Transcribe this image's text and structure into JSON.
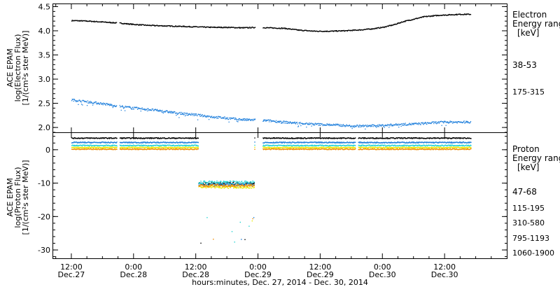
{
  "chart_data": [
    {
      "type": "scatter",
      "panel": "electron",
      "ylabel_lines": [
        "ACE EPAM",
        "log(Electron Flux)",
        "[1/(cm²s ster MeV)]"
      ],
      "ylim": [
        1.9,
        4.55
      ],
      "yticks": [
        "2.0",
        "2.5",
        "3.0",
        "3.5",
        "4.0",
        "4.5"
      ],
      "ytick_values": [
        2.0,
        2.5,
        3.0,
        3.5,
        4.0,
        4.5
      ],
      "legend_title": [
        "Electron",
        "Energy ranges",
        "[keV]"
      ],
      "series": [
        {
          "name": "38-53",
          "color": "#000000",
          "points": [
            [
              0,
              4.22
            ],
            [
              3,
              4.21
            ],
            [
              6,
              4.19
            ],
            [
              9,
              4.17
            ],
            [
              12,
              4.14
            ],
            [
              15,
              4.12
            ],
            [
              18,
              4.11
            ],
            [
              21,
              4.1
            ],
            [
              24,
              4.09
            ],
            [
              27,
              4.08
            ],
            [
              30,
              4.08
            ],
            [
              33,
              4.07
            ],
            [
              36,
              4.08
            ],
            [
              38,
              4.07
            ],
            [
              41,
              4.06
            ],
            [
              44,
              4.02
            ],
            [
              47,
              4.0
            ],
            [
              50,
              4.0
            ],
            [
              53,
              4.01
            ],
            [
              56,
              4.03
            ],
            [
              58,
              4.05
            ],
            [
              60,
              4.08
            ],
            [
              62,
              4.13
            ],
            [
              64,
              4.2
            ],
            [
              66,
              4.25
            ],
            [
              68,
              4.3
            ],
            [
              71,
              4.33
            ],
            [
              75,
              4.35
            ],
            [
              77,
              4.35
            ]
          ],
          "gaps": [
            [
              8.7,
              9.2
            ],
            [
              35.4,
              36.9
            ]
          ]
        },
        {
          "name": "175-315",
          "color": "#1e7fdc",
          "points": [
            [
              0,
              2.58
            ],
            [
              3,
              2.54
            ],
            [
              6,
              2.5
            ],
            [
              9,
              2.45
            ],
            [
              12,
              2.41
            ],
            [
              15,
              2.38
            ],
            [
              18,
              2.34
            ],
            [
              21,
              2.3
            ],
            [
              24,
              2.27
            ],
            [
              27,
              2.23
            ],
            [
              30,
              2.2
            ],
            [
              33,
              2.17
            ],
            [
              36,
              2.16
            ],
            [
              39,
              2.14
            ],
            [
              42,
              2.11
            ],
            [
              45,
              2.09
            ],
            [
              48,
              2.07
            ],
            [
              51,
              2.06
            ],
            [
              54,
              2.04
            ],
            [
              57,
              2.04
            ],
            [
              60,
              2.05
            ],
            [
              63,
              2.07
            ],
            [
              66,
              2.08
            ],
            [
              69,
              2.1
            ],
            [
              72,
              2.12
            ],
            [
              75,
              2.12
            ],
            [
              77,
              2.12
            ]
          ],
          "gaps": [
            [
              8.7,
              9.2
            ],
            [
              35.4,
              36.9
            ]
          ]
        }
      ]
    },
    {
      "type": "scatter",
      "panel": "proton",
      "ylabel_lines": [
        "ACE EPAM",
        "log(Proton Flux)",
        "[1/(cm²s ster MeV)]"
      ],
      "ylim": [
        -32.5,
        5
      ],
      "yticks": [
        "0",
        "-10",
        "-20",
        "-30"
      ],
      "ytick_values": [
        0,
        -10,
        -20,
        -30
      ],
      "legend_title": [
        "Proton",
        "Energy ranges",
        "[keV]"
      ],
      "series": [
        {
          "name": "47-68",
          "color": "#000000",
          "level": 3.6,
          "gap_level": -10.0
        },
        {
          "name": "115-195",
          "color": "#1e7fdc",
          "level": 2.3,
          "gap_level": -10.3
        },
        {
          "name": "310-580",
          "color": "#22d3d3",
          "level": 1.4,
          "gap_level": -9.6
        },
        {
          "name": "795-1193",
          "color": "#e8e800",
          "level": 0.8,
          "gap_level": -11.0
        },
        {
          "name": "1060-1900",
          "color": "#f08c00",
          "level": 0.3,
          "gap_level": -10.6
        }
      ],
      "outage_hours": [
        24.5,
        35.3
      ],
      "gaps": [
        [
          8.7,
          9.2
        ],
        [
          35.4,
          36.9
        ],
        [
          54.8,
          55.3
        ]
      ]
    }
  ],
  "x_axis": {
    "xlim_hours": [
      -3.5,
      84
    ],
    "ticks": [
      {
        "hour": 0,
        "top": "12:00",
        "bottom": "Dec.27"
      },
      {
        "hour": 12,
        "top": "0:00",
        "bottom": "Dec.28"
      },
      {
        "hour": 24,
        "top": "12:00",
        "bottom": "Dec.28"
      },
      {
        "hour": 36,
        "top": "0:00",
        "bottom": "Dec.29"
      },
      {
        "hour": 48,
        "top": "12:00",
        "bottom": "Dec.29"
      },
      {
        "hour": 60,
        "top": "0:00",
        "bottom": "Dec.30"
      },
      {
        "hour": 72,
        "top": "12:00",
        "bottom": "Dec.30"
      }
    ],
    "label": "hours:minutes, Dec. 27, 2014 - Dec. 30, 2014"
  }
}
